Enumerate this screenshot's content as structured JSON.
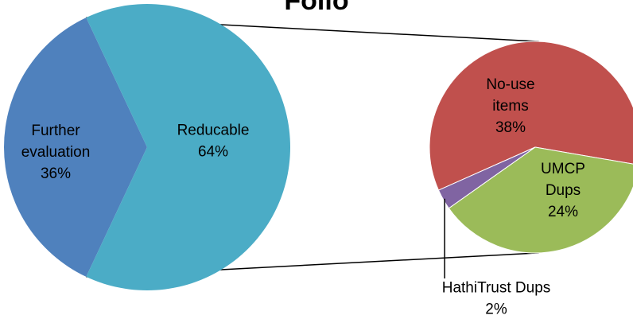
{
  "chart_data": {
    "type": "pie",
    "variant": "pie-of-pie",
    "title": "Folio",
    "primary": {
      "slices": [
        {
          "name": "Further evaluation",
          "label_lines": [
            "Further",
            "evaluation",
            "36%"
          ],
          "value": 36,
          "color": "#4F81BD"
        },
        {
          "name": "Reducable",
          "label_lines": [
            "Reducable",
            "64%"
          ],
          "value": 64,
          "color": "#4BACC6"
        }
      ]
    },
    "secondary": {
      "breaks_out": "Reducable",
      "slices": [
        {
          "name": "No-use items",
          "label_lines": [
            "No-use",
            "items",
            "38%"
          ],
          "value": 38,
          "color": "#C0504D"
        },
        {
          "name": "UMCP Dups",
          "label_lines": [
            "UMCP",
            "Dups",
            "24%"
          ],
          "value": 24,
          "color": "#9BBB59"
        },
        {
          "name": "HathiTrust Dups",
          "label_lines": [
            "HathiTrust Dups",
            "2%"
          ],
          "value": 2,
          "color": "#8064A2"
        }
      ]
    },
    "legend": "none"
  }
}
